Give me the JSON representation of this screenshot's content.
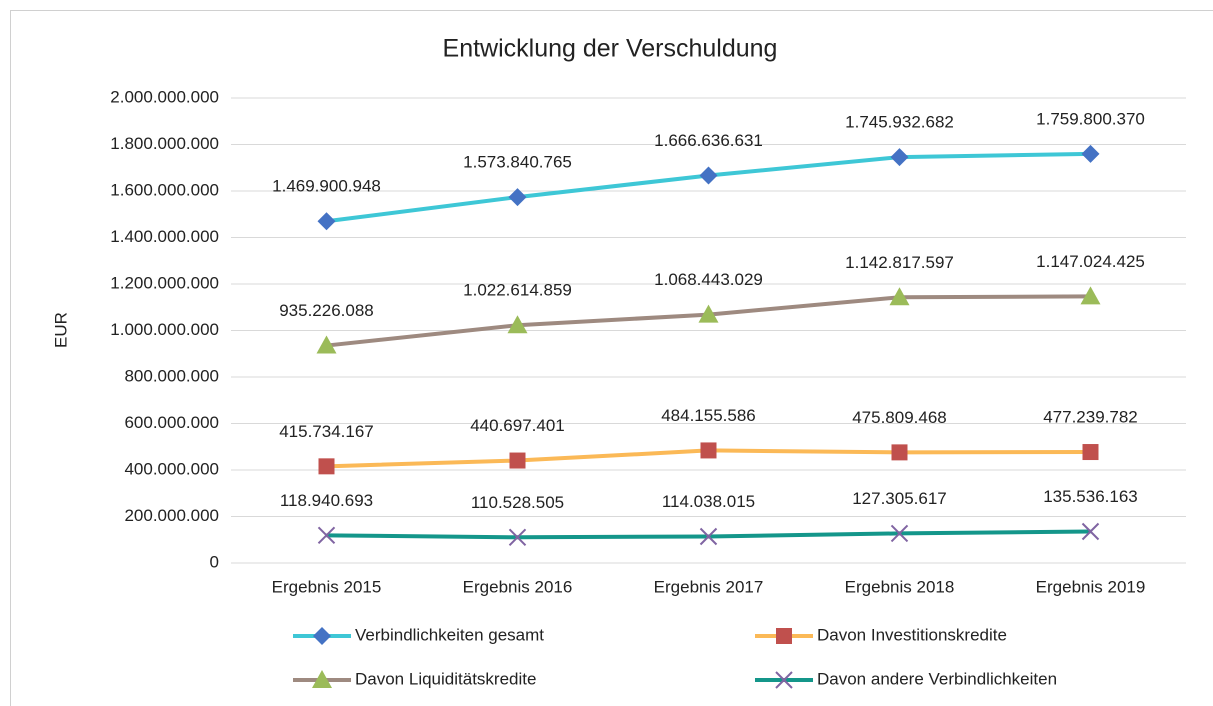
{
  "chart_data": {
    "type": "line",
    "title": "Entwicklung der Verschuldung",
    "y_label": "EUR",
    "categories": [
      "Ergebnis 2015",
      "Ergebnis 2016",
      "Ergebnis 2017",
      "Ergebnis 2018",
      "Ergebnis 2019"
    ],
    "series": [
      {
        "name": "Verbindlichkeiten gesamt",
        "color": "#3ec7d6",
        "marker": "diamond",
        "marker_color": "#4472c4",
        "values": [
          1469900948,
          1573840765,
          1666636631,
          1745932682,
          1759800370
        ],
        "value_labels": [
          "1.469.900.948",
          "1.573.840.765",
          "1.666.636.631",
          "1.745.932.682",
          "1.759.800.370"
        ]
      },
      {
        "name": "Davon Investitionskredite",
        "color": "#fbb957",
        "marker": "square",
        "marker_color": "#c0504d",
        "values": [
          415734167,
          440697401,
          484155586,
          475809468,
          477239782
        ],
        "value_labels": [
          "415.734.167",
          "440.697.401",
          "484.155.586",
          "475.809.468",
          "477.239.782"
        ]
      },
      {
        "name": "Davon Liquiditätskredite",
        "color": "#9e8a80",
        "marker": "triangle",
        "marker_color": "#9bbb59",
        "values": [
          935226088,
          1022614859,
          1068443029,
          1142817597,
          1147024425
        ],
        "value_labels": [
          "935.226.088",
          "1.022.614.859",
          "1.068.443.029",
          "1.142.817.597",
          "1.147.024.425"
        ]
      },
      {
        "name": "Davon andere Verbindlichkeiten",
        "color": "#14968a",
        "marker": "x",
        "marker_color": "#8064a2",
        "values": [
          118940693,
          110528505,
          114038015,
          127305617,
          135536163
        ],
        "value_labels": [
          "118.940.693",
          "110.528.505",
          "114.038.015",
          "127.305.617",
          "135.536.163"
        ]
      }
    ],
    "ylim": [
      0,
      2000000000
    ],
    "yticks": [
      0,
      {
        "value": 200000000,
        "label": "200.000.000"
      },
      {
        "value": 400000000,
        "label": "400.000.000"
      },
      {
        "value": 600000000,
        "label": "600.000.000"
      },
      {
        "value": 800000000,
        "label": "800.000.000"
      },
      {
        "value": 1000000000,
        "label": "1.000.000.000"
      },
      {
        "value": 1200000000,
        "label": "1.200.000.000"
      },
      {
        "value": 1400000000,
        "label": "1.400.000.000"
      },
      {
        "value": 1600000000,
        "label": "1.600.000.000"
      },
      {
        "value": 1800000000,
        "label": "1.800.000.000"
      },
      {
        "value": 2000000000,
        "label": "2.000.000.000"
      }
    ],
    "grid": true,
    "legend": "bottom"
  }
}
